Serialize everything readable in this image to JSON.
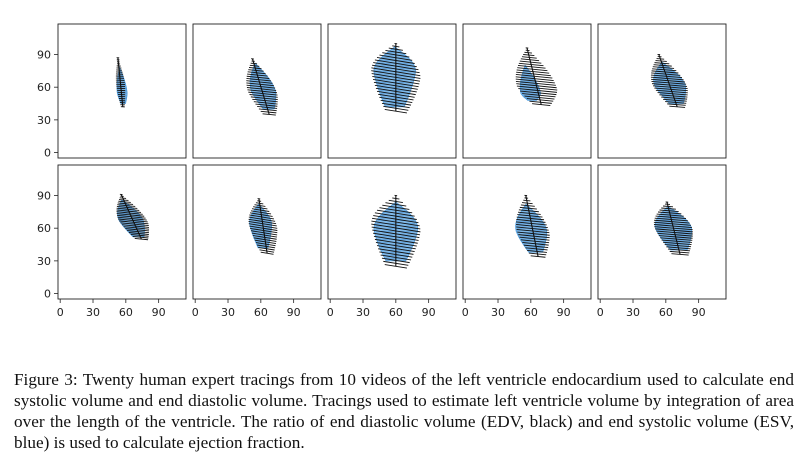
{
  "figure": {
    "caption": "Figure 3: Twenty human expert tracings from 10 videos of the left ventricle endocardium used to calculate end systolic volume and end diastolic volume. Tracings used to estimate left ventricle volume by integration of area over the length of the ventricle. The ratio of end diastolic volume (EDV, black) and end systolic volume (ESV, blue) is used to calculate ejection fraction."
  },
  "chart_data": {
    "type": "scatter",
    "layout_grid": "2 rows x 5 columns of small multiples with shared axes",
    "x_ticks": [
      0,
      30,
      60,
      90
    ],
    "y_ticks": [
      0,
      30,
      60,
      90
    ],
    "xlim": [
      -2,
      115
    ],
    "ylim": [
      -5,
      118
    ],
    "grid": false,
    "legend": "none",
    "colors": {
      "edv": "#111111",
      "esv": "#4f9ee0"
    },
    "panels": [
      {
        "edv": {
          "xc": 55,
          "ytop": 87,
          "ybot": 42,
          "wmax": 8,
          "peak": 0.55,
          "tilt": 0.1,
          "slant": 0.02
        },
        "esv": {
          "xc": 56,
          "ytop": 78,
          "ybot": 45,
          "wmax": 9,
          "peak": 0.7,
          "tilt": 0.1
        }
      },
      {
        "edv": {
          "xc": 60,
          "ytop": 86,
          "ybot": 35,
          "wmax": 27,
          "peak": 0.6,
          "tilt": 0.3,
          "slant": 0.05
        },
        "esv": {
          "xc": 61,
          "ytop": 82,
          "ybot": 40,
          "wmax": 22,
          "peak": 0.6,
          "tilt": 0.3
        }
      },
      {
        "edv": {
          "xc": 60,
          "ytop": 100,
          "ybot": 38,
          "wmax": 45,
          "peak": 0.45,
          "tilt": 0.0,
          "slant": 0.08
        },
        "esv": {
          "xc": 59,
          "ytop": 97,
          "ybot": 42,
          "wmax": 38,
          "peak": 0.4,
          "tilt": 0.0
        }
      },
      {
        "edv": {
          "xc": 63,
          "ytop": 96,
          "ybot": 44,
          "wmax": 37,
          "peak": 0.7,
          "tilt": 0.25,
          "slant": 0.05
        },
        "esv": {
          "xc": 58,
          "ytop": 80,
          "ybot": 48,
          "wmax": 18,
          "peak": 0.8,
          "tilt": 0.2
        }
      },
      {
        "edv": {
          "xc": 62,
          "ytop": 90,
          "ybot": 42,
          "wmax": 32,
          "peak": 0.6,
          "tilt": 0.35,
          "slant": 0.04
        },
        "esv": {
          "xc": 63,
          "ytop": 83,
          "ybot": 45,
          "wmax": 28,
          "peak": 0.55,
          "tilt": 0.35
        }
      },
      {
        "edv": {
          "xc": 65,
          "ytop": 91,
          "ybot": 50,
          "wmax": 27,
          "peak": 0.6,
          "tilt": 0.45,
          "slant": 0.05
        },
        "esv": {
          "xc": 64,
          "ytop": 86,
          "ybot": 52,
          "wmax": 22,
          "peak": 0.55,
          "tilt": 0.45
        }
      },
      {
        "edv": {
          "xc": 62,
          "ytop": 87,
          "ybot": 37,
          "wmax": 26,
          "peak": 0.5,
          "tilt": 0.15,
          "slant": 0.08
        },
        "esv": {
          "xc": 60,
          "ytop": 82,
          "ybot": 42,
          "wmax": 20,
          "peak": 0.45,
          "tilt": 0.1
        }
      },
      {
        "edv": {
          "xc": 60,
          "ytop": 90,
          "ybot": 25,
          "wmax": 45,
          "peak": 0.45,
          "tilt": 0.0,
          "slant": 0.08
        },
        "esv": {
          "xc": 60,
          "ytop": 84,
          "ybot": 30,
          "wmax": 40,
          "peak": 0.45,
          "tilt": 0.0
        }
      },
      {
        "edv": {
          "xc": 61,
          "ytop": 90,
          "ybot": 34,
          "wmax": 30,
          "peak": 0.6,
          "tilt": 0.2,
          "slant": 0.05
        },
        "esv": {
          "xc": 60,
          "ytop": 82,
          "ybot": 38,
          "wmax": 28,
          "peak": 0.55,
          "tilt": 0.2
        }
      },
      {
        "edv": {
          "xc": 67,
          "ytop": 84,
          "ybot": 36,
          "wmax": 35,
          "peak": 0.5,
          "tilt": 0.25,
          "slant": 0.04
        },
        "esv": {
          "xc": 67,
          "ytop": 80,
          "ybot": 40,
          "wmax": 33,
          "peak": 0.5,
          "tilt": 0.25
        }
      }
    ]
  }
}
